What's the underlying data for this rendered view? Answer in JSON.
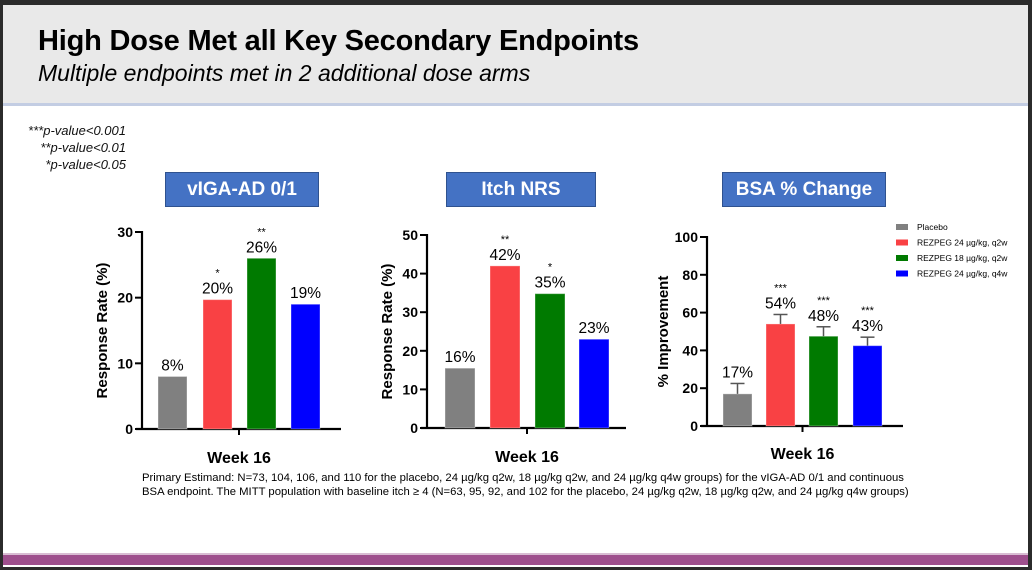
{
  "header": {
    "title": "High Dose Met all Key Secondary Endpoints",
    "subtitle": "Multiple endpoints met in 2 additional dose arms"
  },
  "significance_legend": [
    "***p-value<0.001",
    "**p-value<0.01",
    "*p-value<0.05"
  ],
  "colors": {
    "title_box": "#4472c4",
    "placebo": "#808080",
    "rezpeg_24_q2w": "#f94144",
    "rezpeg_18_q2w": "#007a00",
    "rezpeg_24_q4w": "#0000ff",
    "bottom_bar": "#9e4f8d"
  },
  "chart_data": [
    {
      "type": "bar",
      "title": "vIGA-AD 0/1",
      "xlabel": "Week 16",
      "ylabel": "Response Rate (%)",
      "ylim": [
        0,
        30
      ],
      "yticks": [
        0,
        10,
        20,
        30
      ],
      "categories": [
        "Week 16"
      ],
      "series": [
        {
          "name": "Placebo",
          "values": [
            8
          ],
          "label": "8%",
          "sig": ""
        },
        {
          "name": "REZPEG 24 µg/kg, q2w",
          "values": [
            19.7
          ],
          "label": "20%",
          "sig": "*"
        },
        {
          "name": "REZPEG 18 µg/kg, q2w",
          "values": [
            26
          ],
          "label": "26%",
          "sig": "**"
        },
        {
          "name": "REZPEG 24 µg/kg, q4w",
          "values": [
            19
          ],
          "label": "19%",
          "sig": ""
        }
      ],
      "error_bars": false,
      "grid": false
    },
    {
      "type": "bar",
      "title": "Itch NRS",
      "xlabel": "Week 16",
      "ylabel": "Response Rate (%)",
      "ylim": [
        0,
        50
      ],
      "yticks": [
        0,
        10,
        20,
        30,
        40,
        50
      ],
      "categories": [
        "Week 16"
      ],
      "series": [
        {
          "name": "Placebo",
          "values": [
            15.5
          ],
          "label": "16%",
          "sig": ""
        },
        {
          "name": "REZPEG 24 µg/kg, q2w",
          "values": [
            42
          ],
          "label": "42%",
          "sig": "**"
        },
        {
          "name": "REZPEG 18 µg/kg, q2w",
          "values": [
            34.8
          ],
          "label": "35%",
          "sig": "*"
        },
        {
          "name": "REZPEG 24 µg/kg, q4w",
          "values": [
            23
          ],
          "label": "23%",
          "sig": ""
        }
      ],
      "error_bars": false,
      "grid": false
    },
    {
      "type": "bar",
      "title": "BSA % Change",
      "xlabel": "Week 16",
      "ylabel": "% Improvement",
      "ylim": [
        0,
        100
      ],
      "yticks": [
        0,
        20,
        40,
        60,
        80,
        100
      ],
      "categories": [
        "Week 16"
      ],
      "series": [
        {
          "name": "Placebo",
          "values": [
            17
          ],
          "label": "17%",
          "sig": "",
          "error_upper": 22.5
        },
        {
          "name": "REZPEG 24 µg/kg, q2w",
          "values": [
            54
          ],
          "label": "54%",
          "sig": "***",
          "error_upper": 59
        },
        {
          "name": "REZPEG 18 µg/kg, q2w",
          "values": [
            47.5
          ],
          "label": "48%",
          "sig": "***",
          "error_upper": 52.5
        },
        {
          "name": "REZPEG 24 µg/kg, q4w",
          "values": [
            42.5
          ],
          "label": "43%",
          "sig": "***",
          "error_upper": 47
        }
      ],
      "error_bars": true,
      "grid": false,
      "legend": {
        "placement": "right",
        "entries": [
          "Placebo",
          "REZPEG 24 µg/kg, q2w",
          "REZPEG 18 µg/kg, q2w",
          "REZPEG 24 µg/kg, q4w"
        ]
      }
    }
  ],
  "footnote": {
    "line1": "Primary Estimand: N=73, 104, 106, and 110 for the placebo, 24 µg/kg q2w, 18 µg/kg q2w, and 24 µg/kg q4w groups) for the vIGA-AD 0/1 and continuous",
    "line2": "BSA endpoint. The MITT population with baseline itch ≥ 4 (N=63, 95, 92, and 102 for the placebo, 24 µg/kg q2w, 18 µg/kg q2w, and 24 µg/kg q4w groups)"
  }
}
